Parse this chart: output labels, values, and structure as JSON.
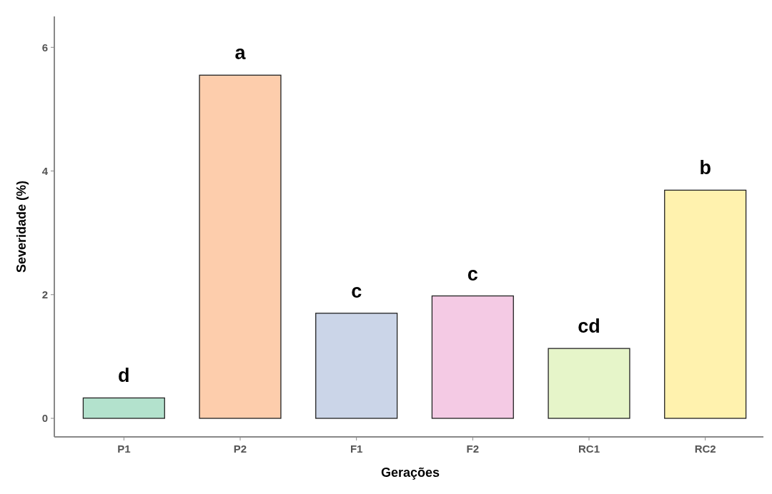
{
  "chart_data": {
    "type": "bar",
    "xlabel": "Gerações",
    "ylabel": "Severidade (%)",
    "categories": [
      "P1",
      "P2",
      "F1",
      "F2",
      "RC1",
      "RC2"
    ],
    "values": [
      0.33,
      5.55,
      1.7,
      1.98,
      1.13,
      3.69
    ],
    "colors": [
      "#b3e2cd",
      "#fdcdac",
      "#cbd5e8",
      "#f4cae4",
      "#e6f5c9",
      "#fff2ae"
    ],
    "ylim": [
      -0.3,
      6.5
    ],
    "yticks": [
      0,
      2,
      4,
      6
    ],
    "grid": false,
    "annotations": [
      {
        "text": "d",
        "x": "P1",
        "y": 0.33
      },
      {
        "text": "a",
        "x": "P2",
        "y": 5.55
      },
      {
        "text": "c",
        "x": "F1",
        "y": 1.7
      },
      {
        "text": "c",
        "x": "F2",
        "y": 1.98
      },
      {
        "text": "cd",
        "x": "RC1",
        "y": 1.13
      },
      {
        "text": "b",
        "x": "RC2",
        "y": 3.69
      }
    ]
  }
}
